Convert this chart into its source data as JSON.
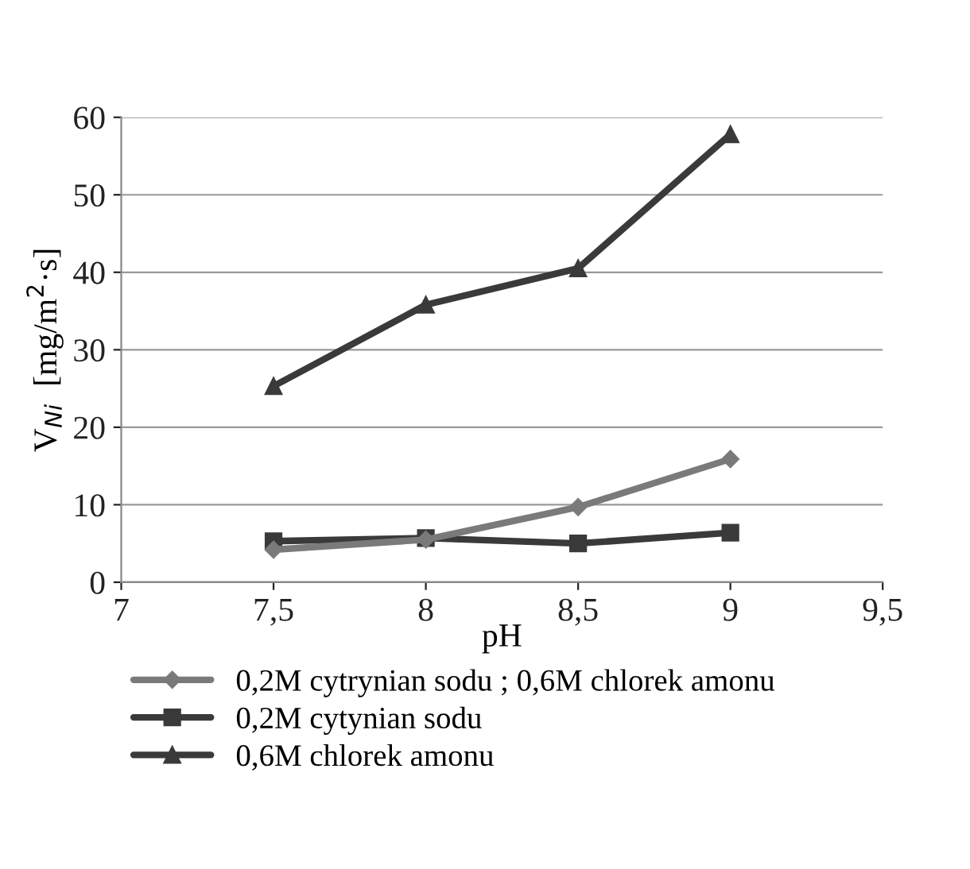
{
  "chart_data": {
    "type": "line",
    "xlabel": "pH",
    "ylabel": "V$_{Ni}$  [mg/m$^{2}$·s]",
    "x": [
      7.5,
      8,
      8.5,
      9
    ],
    "series": [
      {
        "name": "0,2M cytrynian sodu ; 0,6M chlorek amonu",
        "color": "#7a7a7a",
        "marker": "diamond",
        "values": [
          4.2,
          5.5,
          9.7,
          15.9
        ]
      },
      {
        "name": "0,2M cytynian sodu",
        "color": "#3a3a3a",
        "marker": "square",
        "values": [
          5.3,
          5.7,
          5.0,
          6.4
        ]
      },
      {
        "name": "0,6M chlorek amonu",
        "color": "#3a3a3a",
        "marker": "triangle",
        "values": [
          25.3,
          35.8,
          40.5,
          57.8
        ]
      }
    ],
    "xlim": [
      7,
      9.5
    ],
    "xticks": [
      7,
      {
        "value": 7.5,
        "label": "7,5"
      },
      8,
      {
        "value": 8.5,
        "label": "8,5"
      },
      9,
      {
        "value": 9.5,
        "label": "9,5"
      }
    ],
    "ylim": [
      0,
      60
    ],
    "yticks": [
      0,
      10,
      20,
      30,
      40,
      50,
      60
    ],
    "grid": "y",
    "legend": "bottom",
    "line_style": "solid"
  }
}
